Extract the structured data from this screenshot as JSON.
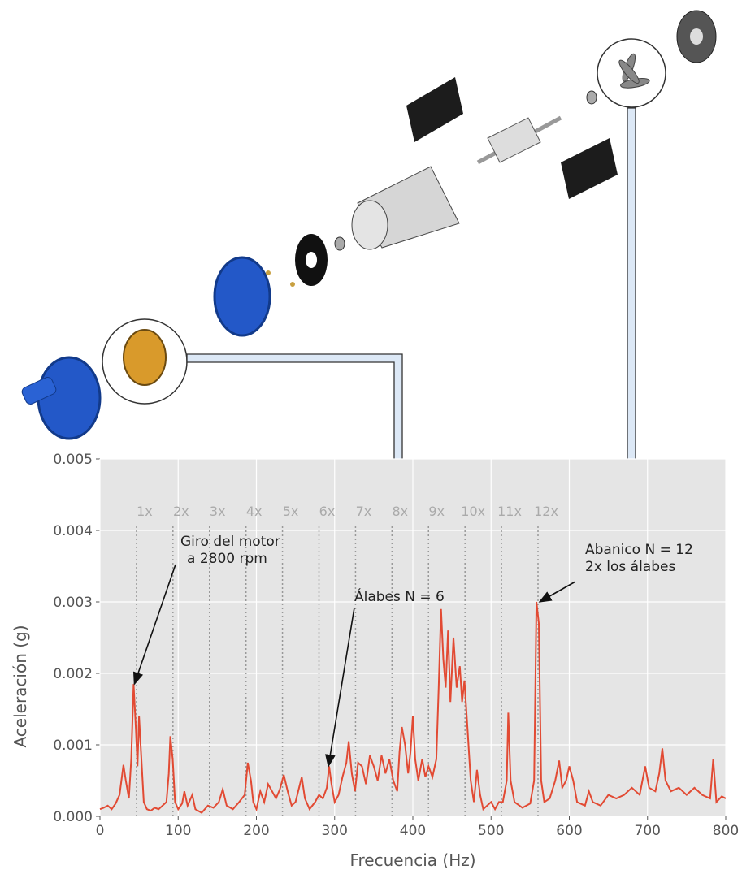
{
  "chart_data": {
    "type": "line",
    "xlabel": "Frecuencia (Hz)",
    "ylabel": "Aceleración (g)",
    "xlim": [
      0,
      800
    ],
    "ylim": [
      0,
      0.005
    ],
    "xticks": [
      0,
      100,
      200,
      300,
      400,
      500,
      600,
      700,
      800
    ],
    "yticks": [
      {
        "value": 0,
        "label": "0.000"
      },
      0.001,
      0.002,
      0.003,
      0.004,
      0.005
    ],
    "grid": true,
    "harmonics": [
      {
        "value": 46.7,
        "label": "1x"
      },
      {
        "value": 93.3,
        "label": "2x"
      },
      {
        "value": 140,
        "label": "3x"
      },
      {
        "value": 186.7,
        "label": "4x"
      },
      {
        "value": 233.3,
        "label": "5x"
      },
      {
        "value": 280,
        "label": "6x"
      },
      {
        "value": 326.7,
        "label": "7x"
      },
      {
        "value": 373.3,
        "label": "8x"
      },
      {
        "value": 420,
        "label": "9x"
      },
      {
        "value": 466.7,
        "label": "10x"
      },
      {
        "value": 513.3,
        "label": "11x"
      },
      {
        "value": 560,
        "label": "12x"
      }
    ],
    "series": [
      {
        "color": "#e24a33",
        "x": [
          0,
          5,
          10,
          15,
          20,
          25,
          30,
          33,
          37,
          40,
          43,
          46,
          48,
          50,
          53,
          56,
          60,
          65,
          70,
          75,
          80,
          85,
          88,
          90,
          93,
          96,
          100,
          105,
          108,
          112,
          118,
          122,
          130,
          138,
          145,
          152,
          157,
          162,
          170,
          178,
          185,
          189,
          193,
          196,
          200,
          205,
          210,
          215,
          220,
          225,
          230,
          235,
          240,
          245,
          250,
          258,
          262,
          268,
          275,
          280,
          285,
          290,
          293,
          296,
          300,
          305,
          310,
          315,
          318,
          322,
          326,
          330,
          335,
          340,
          345,
          350,
          355,
          360,
          365,
          370,
          375,
          380,
          383,
          386,
          390,
          394,
          397,
          400,
          403,
          407,
          412,
          416,
          420,
          425,
          430,
          433,
          436,
          439,
          442,
          445,
          448,
          452,
          456,
          460,
          463,
          466,
          470,
          474,
          478,
          482,
          486,
          490,
          495,
          500,
          505,
          510,
          515,
          520,
          522,
          525,
          530,
          540,
          550,
          555,
          558,
          561,
          564,
          568,
          575,
          582,
          587,
          591,
          596,
          600,
          605,
          610,
          620,
          625,
          630,
          640,
          650,
          660,
          670,
          680,
          690,
          697,
          702,
          710,
          715,
          719,
          723,
          730,
          740,
          750,
          760,
          770,
          780,
          784,
          788,
          795,
          800
        ],
        "values": [
          0.0001,
          0.00012,
          0.00015,
          0.0001,
          0.00018,
          0.0003,
          0.00072,
          0.0005,
          0.00025,
          0.0008,
          0.00185,
          0.0012,
          0.0007,
          0.0014,
          0.0008,
          0.0002,
          0.0001,
          8e-05,
          0.00012,
          0.0001,
          0.00015,
          0.0002,
          0.0006,
          0.00112,
          0.0008,
          0.0002,
          0.0001,
          0.00018,
          0.00035,
          0.00015,
          0.0003,
          0.0001,
          5e-05,
          0.00015,
          0.00012,
          0.0002,
          0.00038,
          0.00015,
          0.0001,
          0.0002,
          0.0003,
          0.00075,
          0.0005,
          0.0002,
          0.0001,
          0.00035,
          0.0002,
          0.00045,
          0.00035,
          0.00025,
          0.00038,
          0.00058,
          0.00035,
          0.00015,
          0.0002,
          0.00055,
          0.00025,
          0.0001,
          0.0002,
          0.0003,
          0.00025,
          0.0004,
          0.0007,
          0.00045,
          0.0002,
          0.0003,
          0.00055,
          0.00075,
          0.00105,
          0.0006,
          0.00035,
          0.00075,
          0.0007,
          0.00045,
          0.00085,
          0.0007,
          0.0005,
          0.00085,
          0.0006,
          0.0008,
          0.0005,
          0.00035,
          0.0009,
          0.00125,
          0.001,
          0.0006,
          0.0009,
          0.0014,
          0.0008,
          0.0005,
          0.0008,
          0.00055,
          0.0007,
          0.00055,
          0.0008,
          0.0018,
          0.0029,
          0.0022,
          0.0018,
          0.0026,
          0.0016,
          0.0025,
          0.0018,
          0.0021,
          0.0016,
          0.0019,
          0.0012,
          0.0005,
          0.0002,
          0.00065,
          0.0003,
          0.0001,
          0.00015,
          0.0002,
          0.0001,
          0.0002,
          0.0002,
          0.0005,
          0.00145,
          0.0005,
          0.0002,
          0.00012,
          0.00018,
          0.0005,
          0.003,
          0.0027,
          0.0005,
          0.0002,
          0.00025,
          0.0005,
          0.00078,
          0.0004,
          0.0005,
          0.0007,
          0.0005,
          0.0002,
          0.00015,
          0.00035,
          0.0002,
          0.00015,
          0.0003,
          0.00025,
          0.0003,
          0.0004,
          0.0003,
          0.0007,
          0.0004,
          0.00035,
          0.0006,
          0.00095,
          0.0005,
          0.00035,
          0.0004,
          0.0003,
          0.0004,
          0.0003,
          0.00025,
          0.0008,
          0.0002,
          0.00028,
          0.00025
        ]
      }
    ],
    "annotations": [
      {
        "text": [
          "Giro del motor",
          "a 2800 rpm"
        ],
        "xy": [
          44,
          0.00185
        ]
      },
      {
        "text": [
          "Álabes N = 6"
        ],
        "xy": [
          292,
          0.0007
        ]
      },
      {
        "text": [
          "Abanico N = 12",
          "2x los álabes"
        ],
        "xy": [
          562,
          0.003
        ]
      }
    ]
  }
}
